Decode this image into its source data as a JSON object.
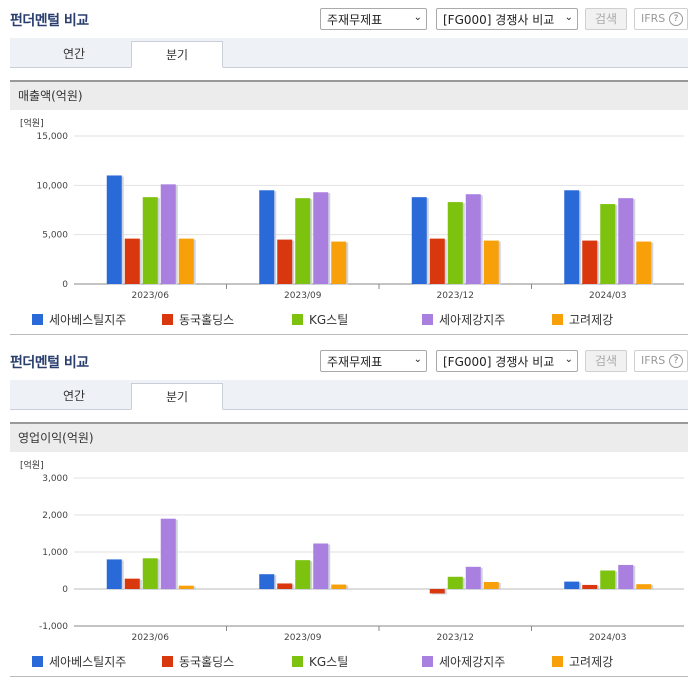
{
  "sections": [
    {
      "title": "펀더멘털 비교",
      "select_report": "주재무제표",
      "select_compare": "[FG000] 경쟁사 비교",
      "search_label": "검색",
      "ifrs_label": "IFRS",
      "help_label": "?",
      "tabs": [
        {
          "label": "연간",
          "active": false
        },
        {
          "label": "분기",
          "active": true
        }
      ],
      "metric_label": "매출액(억원)"
    },
    {
      "title": "펀더멘털 비교",
      "select_report": "주재무제표",
      "select_compare": "[FG000] 경쟁사 비교",
      "search_label": "검색",
      "ifrs_label": "IFRS",
      "help_label": "?",
      "tabs": [
        {
          "label": "연간",
          "active": false
        },
        {
          "label": "분기",
          "active": true
        }
      ],
      "metric_label": "영업이익(억원)"
    }
  ],
  "legend": [
    {
      "name": "세아베스틸지주",
      "color": "#2a6ad8"
    },
    {
      "name": "동국홀딩스",
      "color": "#d9380f"
    },
    {
      "name": "KG스틸",
      "color": "#7cc20e"
    },
    {
      "name": "세아제강지주",
      "color": "#a97fe0"
    },
    {
      "name": "고려제강",
      "color": "#f7a00a"
    }
  ],
  "chart_data": [
    {
      "type": "bar",
      "unit_label": "[억원]",
      "categories": [
        "2023/06",
        "2023/09",
        "2023/12",
        "2024/03"
      ],
      "ylim": [
        0,
        15000
      ],
      "yticks": [
        "0",
        "5,000",
        "10,000",
        "15,000"
      ],
      "ytick_values": [
        0,
        5000,
        10000,
        15000
      ],
      "series": [
        {
          "name": "세아베스틸지주",
          "color": "#2a6ad8",
          "values": [
            11000,
            9500,
            8800,
            9500
          ]
        },
        {
          "name": "동국홀딩스",
          "color": "#d9380f",
          "values": [
            4600,
            4500,
            4600,
            4400
          ]
        },
        {
          "name": "KG스틸",
          "color": "#7cc20e",
          "values": [
            8800,
            8700,
            8300,
            8100
          ]
        },
        {
          "name": "세아제강지주",
          "color": "#a97fe0",
          "values": [
            10100,
            9300,
            9100,
            8700
          ]
        },
        {
          "name": "고려제강",
          "color": "#f7a00a",
          "values": [
            4600,
            4300,
            4400,
            4300
          ]
        }
      ]
    },
    {
      "type": "bar",
      "unit_label": "[억원]",
      "categories": [
        "2023/06",
        "2023/09",
        "2023/12",
        "2024/03"
      ],
      "ylim": [
        -1000,
        3000
      ],
      "yticks": [
        "-1,000",
        "0",
        "1,000",
        "2,000",
        "3,000"
      ],
      "ytick_values": [
        -1000,
        0,
        1000,
        2000,
        3000
      ],
      "series": [
        {
          "name": "세아베스틸지주",
          "color": "#2a6ad8",
          "values": [
            800,
            400,
            0,
            200
          ]
        },
        {
          "name": "동국홀딩스",
          "color": "#d9380f",
          "values": [
            280,
            150,
            -120,
            110
          ]
        },
        {
          "name": "KG스틸",
          "color": "#7cc20e",
          "values": [
            830,
            780,
            330,
            500
          ]
        },
        {
          "name": "세아제강지주",
          "color": "#a97fe0",
          "values": [
            1900,
            1230,
            600,
            650
          ]
        },
        {
          "name": "고려제강",
          "color": "#f7a00a",
          "values": [
            90,
            120,
            190,
            130
          ]
        }
      ]
    }
  ]
}
